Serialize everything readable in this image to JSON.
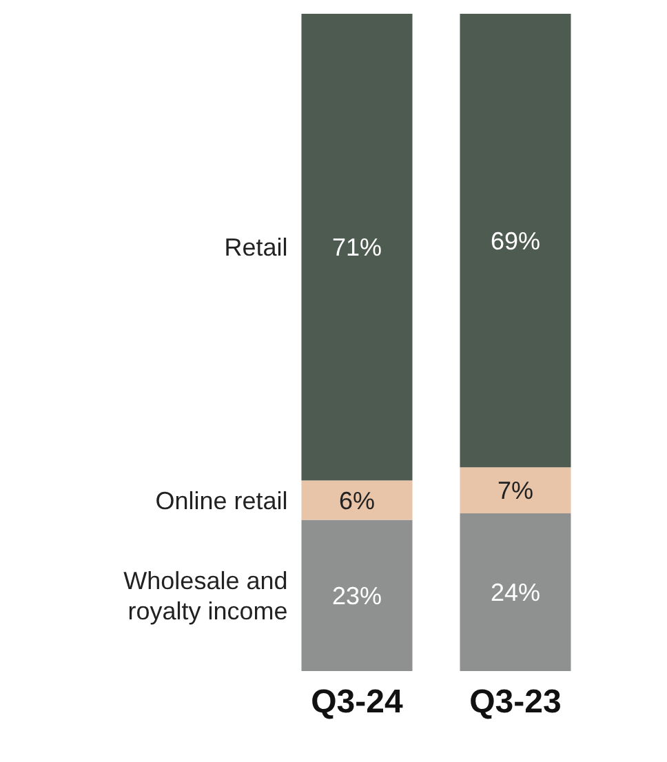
{
  "chart_data": {
    "type": "bar",
    "stacked": true,
    "categories": [
      "Q3-24",
      "Q3-23"
    ],
    "series": [
      {
        "name": "Wholesale and royalty income",
        "color": "#8f9190",
        "values": [
          23,
          24
        ],
        "value_labels": [
          "23%",
          "24%"
        ]
      },
      {
        "name": "Online retail",
        "color": "#e8c4a8",
        "values": [
          6,
          7
        ],
        "value_labels": [
          "6%",
          "7%"
        ]
      },
      {
        "name": "Retail",
        "color": "#4d5b50",
        "values": [
          71,
          69
        ],
        "value_labels": [
          "71%",
          "69%"
        ]
      }
    ],
    "legend": false
  }
}
